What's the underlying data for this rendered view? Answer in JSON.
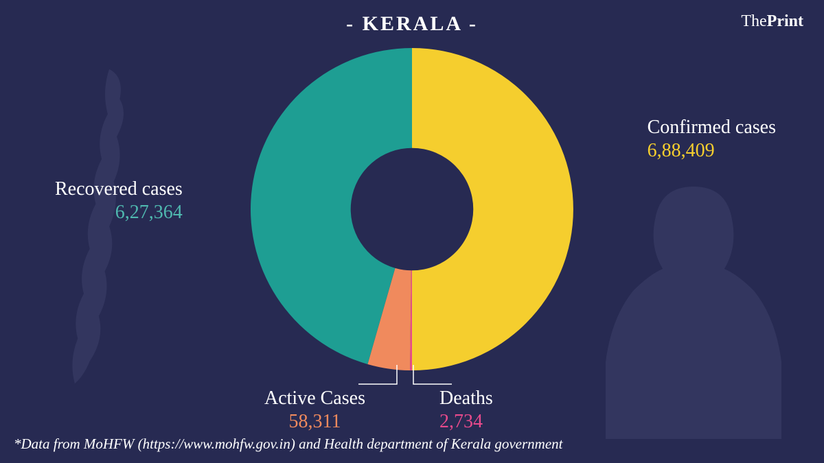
{
  "logo": {
    "part1": "The",
    "part2": "Print"
  },
  "title": "-  KERALA  -",
  "chart": {
    "type": "donut",
    "background_color": "#272a52",
    "inner_radius_ratio": 0.38,
    "slices": [
      {
        "key": "confirmed",
        "label": "Confirmed cases",
        "value_text": "6,88,409",
        "value": 688409,
        "color": "#f5ce2e",
        "value_color": "#f5ce2e"
      },
      {
        "key": "deaths",
        "label": "Deaths",
        "value_text": "2,734",
        "value": 2734,
        "color": "#e84a8c",
        "value_color": "#e84a8c"
      },
      {
        "key": "active",
        "label": "Active Cases",
        "value_text": "58,311",
        "value": 58311,
        "color": "#f08a5d",
        "value_color": "#f08a5d"
      },
      {
        "key": "recovered",
        "label": "Recovered cases",
        "value_text": "6,27,364",
        "value": 627364,
        "color": "#1e9e93",
        "value_color": "#4fb8af"
      }
    ],
    "label_fontsize": 28,
    "title_fontsize": 30,
    "text_color": "#ffffff"
  },
  "footnote": "*Data from MoHFW (https://www.mohfw.gov.in) and Health department of Kerala  government"
}
